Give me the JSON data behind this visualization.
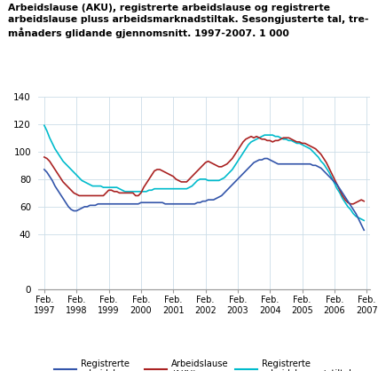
{
  "title_line1": "Arbeidslause (AKU), registrerte arbeidslause og registrerte",
  "title_line2": "arbeidslause pluss arbeidsmarknadstiltak. Sesongjusterte tal, tre-",
  "title_line3": "månaders glidande gjennomsnitt. 1997-2007. 1 000",
  "ylim": [
    0,
    140
  ],
  "yticks": [
    0,
    40,
    60,
    80,
    100,
    120,
    140
  ],
  "xlabel_ticks": [
    "Feb.\n1997",
    "Feb.\n1998",
    "Feb.\n1999",
    "Feb.\n2000",
    "Feb.\n2001",
    "Feb.\n2002",
    "Feb.\n2003",
    "Feb.\n2004",
    "Feb.\n2005",
    "Feb.\n2006",
    "Feb.\n2007"
  ],
  "color_blue": "#3355aa",
  "color_red": "#aa2222",
  "color_cyan": "#00bbcc",
  "legend_labels": [
    "Registrerte\narbeidslause",
    "Arbeidslause\n(AKU)",
    "Registrerte\narbeidslause + tiltak"
  ],
  "registrerte": [
    87,
    85,
    82,
    79,
    75,
    72,
    69,
    66,
    63,
    60,
    58,
    57,
    57,
    58,
    59,
    60,
    60,
    61,
    61,
    61,
    62,
    62,
    62,
    62,
    62,
    62,
    62,
    62,
    62,
    62,
    62,
    62,
    62,
    62,
    62,
    62,
    63,
    63,
    63,
    63,
    63,
    63,
    63,
    63,
    63,
    62,
    62,
    62,
    62,
    62,
    62,
    62,
    62,
    62,
    62,
    62,
    62,
    63,
    63,
    64,
    64,
    65,
    65,
    65,
    66,
    67,
    68,
    70,
    72,
    74,
    76,
    78,
    80,
    82,
    84,
    86,
    88,
    90,
    92,
    93,
    94,
    94,
    95,
    95,
    94,
    93,
    92,
    91,
    91,
    91,
    91,
    91,
    91,
    91,
    91,
    91,
    91,
    91,
    91,
    91,
    90,
    90,
    89,
    88,
    86,
    84,
    82,
    80,
    78,
    76,
    73,
    70,
    67,
    64,
    61,
    58,
    55,
    51,
    47,
    43
  ],
  "aku": [
    96,
    95,
    93,
    90,
    87,
    84,
    81,
    78,
    76,
    74,
    72,
    70,
    69,
    68,
    68,
    68,
    68,
    68,
    68,
    68,
    68,
    68,
    68,
    70,
    72,
    72,
    71,
    71,
    70,
    70,
    70,
    70,
    70,
    70,
    68,
    68,
    70,
    74,
    77,
    80,
    83,
    86,
    87,
    87,
    86,
    85,
    84,
    83,
    82,
    80,
    79,
    78,
    78,
    78,
    80,
    82,
    84,
    86,
    88,
    90,
    92,
    93,
    92,
    91,
    90,
    89,
    89,
    90,
    91,
    93,
    95,
    98,
    101,
    104,
    107,
    109,
    110,
    111,
    110,
    111,
    110,
    109,
    109,
    108,
    108,
    107,
    108,
    108,
    109,
    110,
    110,
    110,
    109,
    108,
    107,
    107,
    106,
    106,
    105,
    104,
    103,
    102,
    100,
    98,
    95,
    92,
    88,
    84,
    80,
    76,
    72,
    68,
    65,
    63,
    62,
    62,
    63,
    64,
    65,
    64
  ],
  "tiltak": [
    119,
    115,
    110,
    106,
    102,
    99,
    96,
    93,
    91,
    89,
    87,
    85,
    83,
    81,
    79,
    78,
    77,
    76,
    75,
    75,
    75,
    75,
    74,
    74,
    74,
    74,
    74,
    74,
    73,
    72,
    71,
    71,
    71,
    71,
    71,
    71,
    71,
    71,
    71,
    72,
    72,
    73,
    73,
    73,
    73,
    73,
    73,
    73,
    73,
    73,
    73,
    73,
    73,
    73,
    74,
    75,
    77,
    79,
    80,
    80,
    80,
    79,
    79,
    79,
    79,
    79,
    80,
    81,
    83,
    85,
    87,
    90,
    93,
    96,
    99,
    102,
    105,
    107,
    108,
    109,
    110,
    111,
    112,
    112,
    112,
    112,
    111,
    111,
    110,
    109,
    109,
    108,
    108,
    107,
    106,
    106,
    105,
    104,
    103,
    102,
    100,
    98,
    96,
    93,
    91,
    88,
    85,
    81,
    77,
    73,
    70,
    66,
    63,
    60,
    58,
    55,
    53,
    52,
    51,
    50
  ]
}
